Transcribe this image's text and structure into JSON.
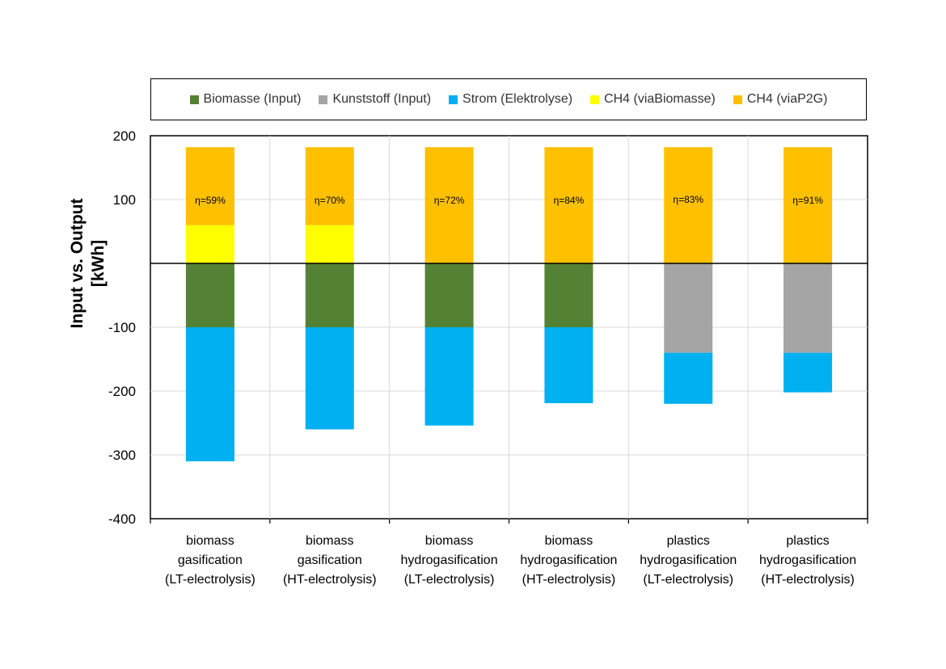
{
  "chart_data": {
    "type": "bar",
    "stacked": true,
    "ylabel": [
      "Input  vs. Output",
      "[kWh]"
    ],
    "ylim": [
      -400,
      200
    ],
    "yticks": [
      200,
      100,
      0,
      -100,
      -200,
      -300,
      -400
    ],
    "ytick_labels": [
      "200",
      "100",
      "",
      "-100",
      "-200",
      "-300",
      "-400"
    ],
    "grid": true,
    "legend_position": "top",
    "categories": [
      [
        "biomass",
        "gasification",
        "(LT-electrolysis)"
      ],
      [
        "biomass",
        "gasification",
        "(HT-electrolysis)"
      ],
      [
        "biomass",
        "hydrogasification",
        "(LT-electrolysis)"
      ],
      [
        "biomass",
        "hydrogasification",
        "(HT-electrolysis)"
      ],
      [
        "plastics",
        "hydrogasification",
        "(LT-electrolysis)"
      ],
      [
        "plastics",
        "hydrogasification",
        "(HT-electrolysis)"
      ]
    ],
    "series": [
      {
        "name": "Biomasse (Input)",
        "color": "#548235",
        "values": [
          -100,
          -100,
          -100,
          -100,
          0,
          0
        ]
      },
      {
        "name": "Kunststoff (Input)",
        "color": "#A5A5A5",
        "values": [
          0,
          0,
          0,
          0,
          -140,
          -140
        ]
      },
      {
        "name": "Strom (Elektrolyse)",
        "color": "#00B0F0",
        "values": [
          -210,
          -160,
          -154,
          -119,
          -80,
          -62
        ]
      },
      {
        "name": "CH4 (viaBiomasse)",
        "color": "#FFFF00",
        "values": [
          60,
          60,
          0,
          0,
          0,
          0
        ]
      },
      {
        "name": "CH4 (viaP2G)",
        "color": "#FFC000",
        "values": [
          122,
          122,
          182,
          182,
          182,
          182
        ]
      }
    ],
    "annotations": [
      "η=59%",
      "η=70%",
      "η=72%",
      "η=84%",
      "η=83%",
      "η=91%"
    ],
    "annotation_values": [
      99,
      99,
      99,
      99,
      100,
      99
    ]
  }
}
